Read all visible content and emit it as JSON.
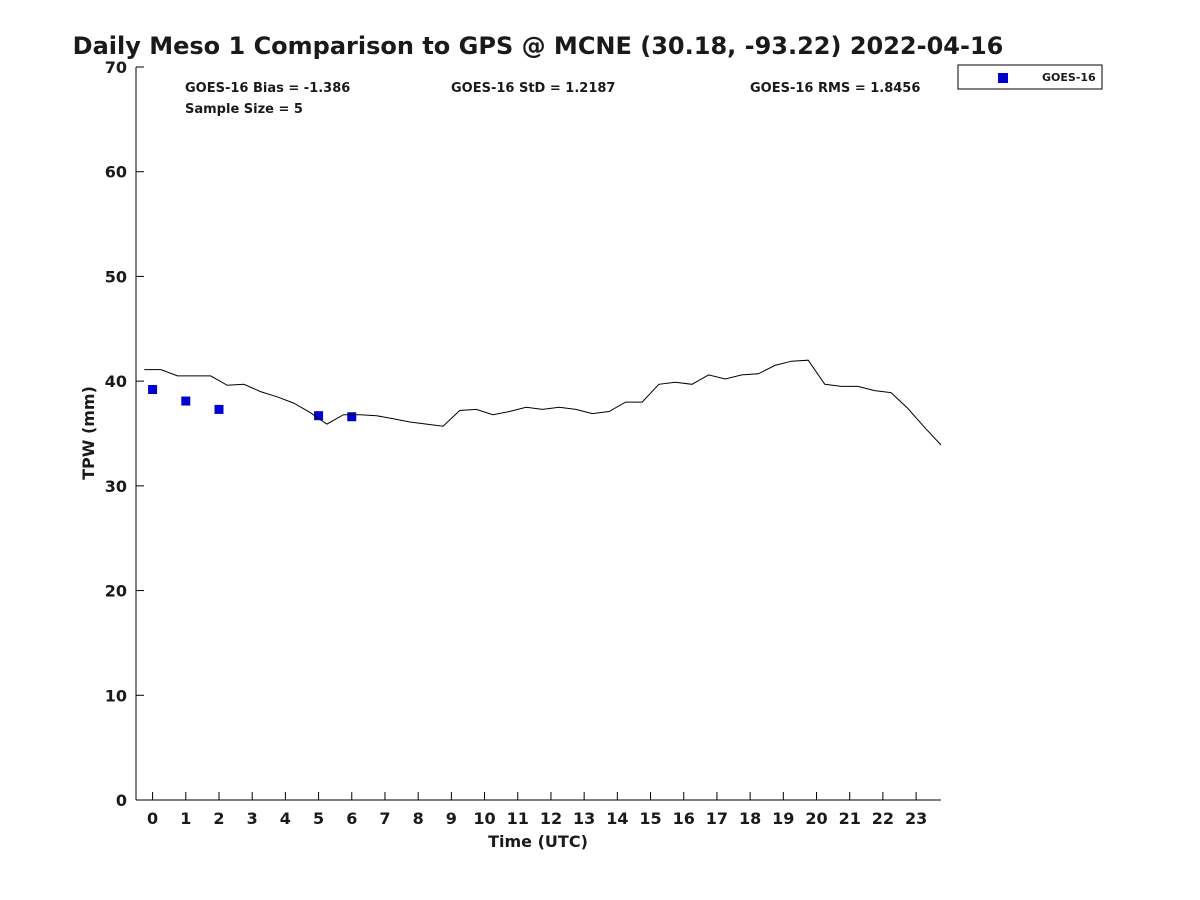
{
  "chart_data": {
    "type": "scatter",
    "title": "Daily Meso 1 Comparison to GPS @ MCNE (30.18, -93.22) 2022-04-16",
    "xlabel": "Time (UTC)",
    "ylabel": "TPW (mm)",
    "xlim": [
      -0.5,
      23.75
    ],
    "ylim": [
      0,
      70
    ],
    "yticks": [
      0,
      10,
      20,
      30,
      40,
      50,
      60,
      70
    ],
    "xticks": [
      0,
      1,
      2,
      3,
      4,
      5,
      6,
      7,
      8,
      9,
      10,
      11,
      12,
      13,
      14,
      15,
      16,
      17,
      18,
      19,
      20,
      21,
      22,
      23
    ],
    "grid": false,
    "legend_position": "outside-top-right",
    "stats": {
      "bias": "GOES-16 Bias = -1.386",
      "std": "GOES-16 StD = 1.2187",
      "rms": "GOES-16 RMS = 1.8456",
      "sample_size": "Sample Size = 5"
    },
    "series": [
      {
        "name": "GOES-16",
        "kind": "marker",
        "color": "#0000d0",
        "x": [
          0,
          1,
          2,
          5,
          6
        ],
        "y": [
          39.2,
          38.1,
          37.3,
          36.7,
          36.6
        ]
      },
      {
        "kind": "line",
        "color": "#000000",
        "x": [
          -0.25,
          0.25,
          0.75,
          1.25,
          1.75,
          2.25,
          2.75,
          3.25,
          3.75,
          4.25,
          4.75,
          5.25,
          5.75,
          6.25,
          6.75,
          7.25,
          7.75,
          8.25,
          8.75,
          9.25,
          9.75,
          10.25,
          10.75,
          11.25,
          11.75,
          12.25,
          12.75,
          13.25,
          13.75,
          14.25,
          14.75,
          15.25,
          15.75,
          16.25,
          16.75,
          17.25,
          17.75,
          18.25,
          18.75,
          19.25,
          19.75,
          20.25,
          20.75,
          21.25,
          21.75,
          22.25,
          22.75,
          23.25,
          23.75
        ],
        "y": [
          41.1,
          41.1,
          40.5,
          40.5,
          40.5,
          39.6,
          39.7,
          39.0,
          38.5,
          37.9,
          37.0,
          35.9,
          36.8,
          36.8,
          36.7,
          36.4,
          36.1,
          35.9,
          35.7,
          37.2,
          37.3,
          36.8,
          37.1,
          37.5,
          37.3,
          37.5,
          37.3,
          36.9,
          37.1,
          38.0,
          38.0,
          39.7,
          39.9,
          39.7,
          40.6,
          40.2,
          40.6,
          40.7,
          41.5,
          41.9,
          42.0,
          39.7,
          39.5,
          39.5,
          39.1,
          38.9,
          37.4,
          35.6,
          33.9
        ]
      }
    ]
  }
}
